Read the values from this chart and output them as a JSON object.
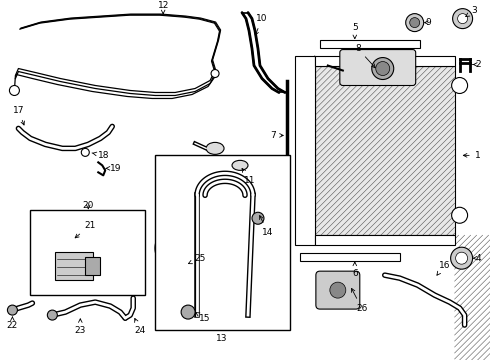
{
  "bg": "#ffffff",
  "lc": "#000000",
  "figure_width": 4.9,
  "figure_height": 3.6,
  "dpi": 100
}
